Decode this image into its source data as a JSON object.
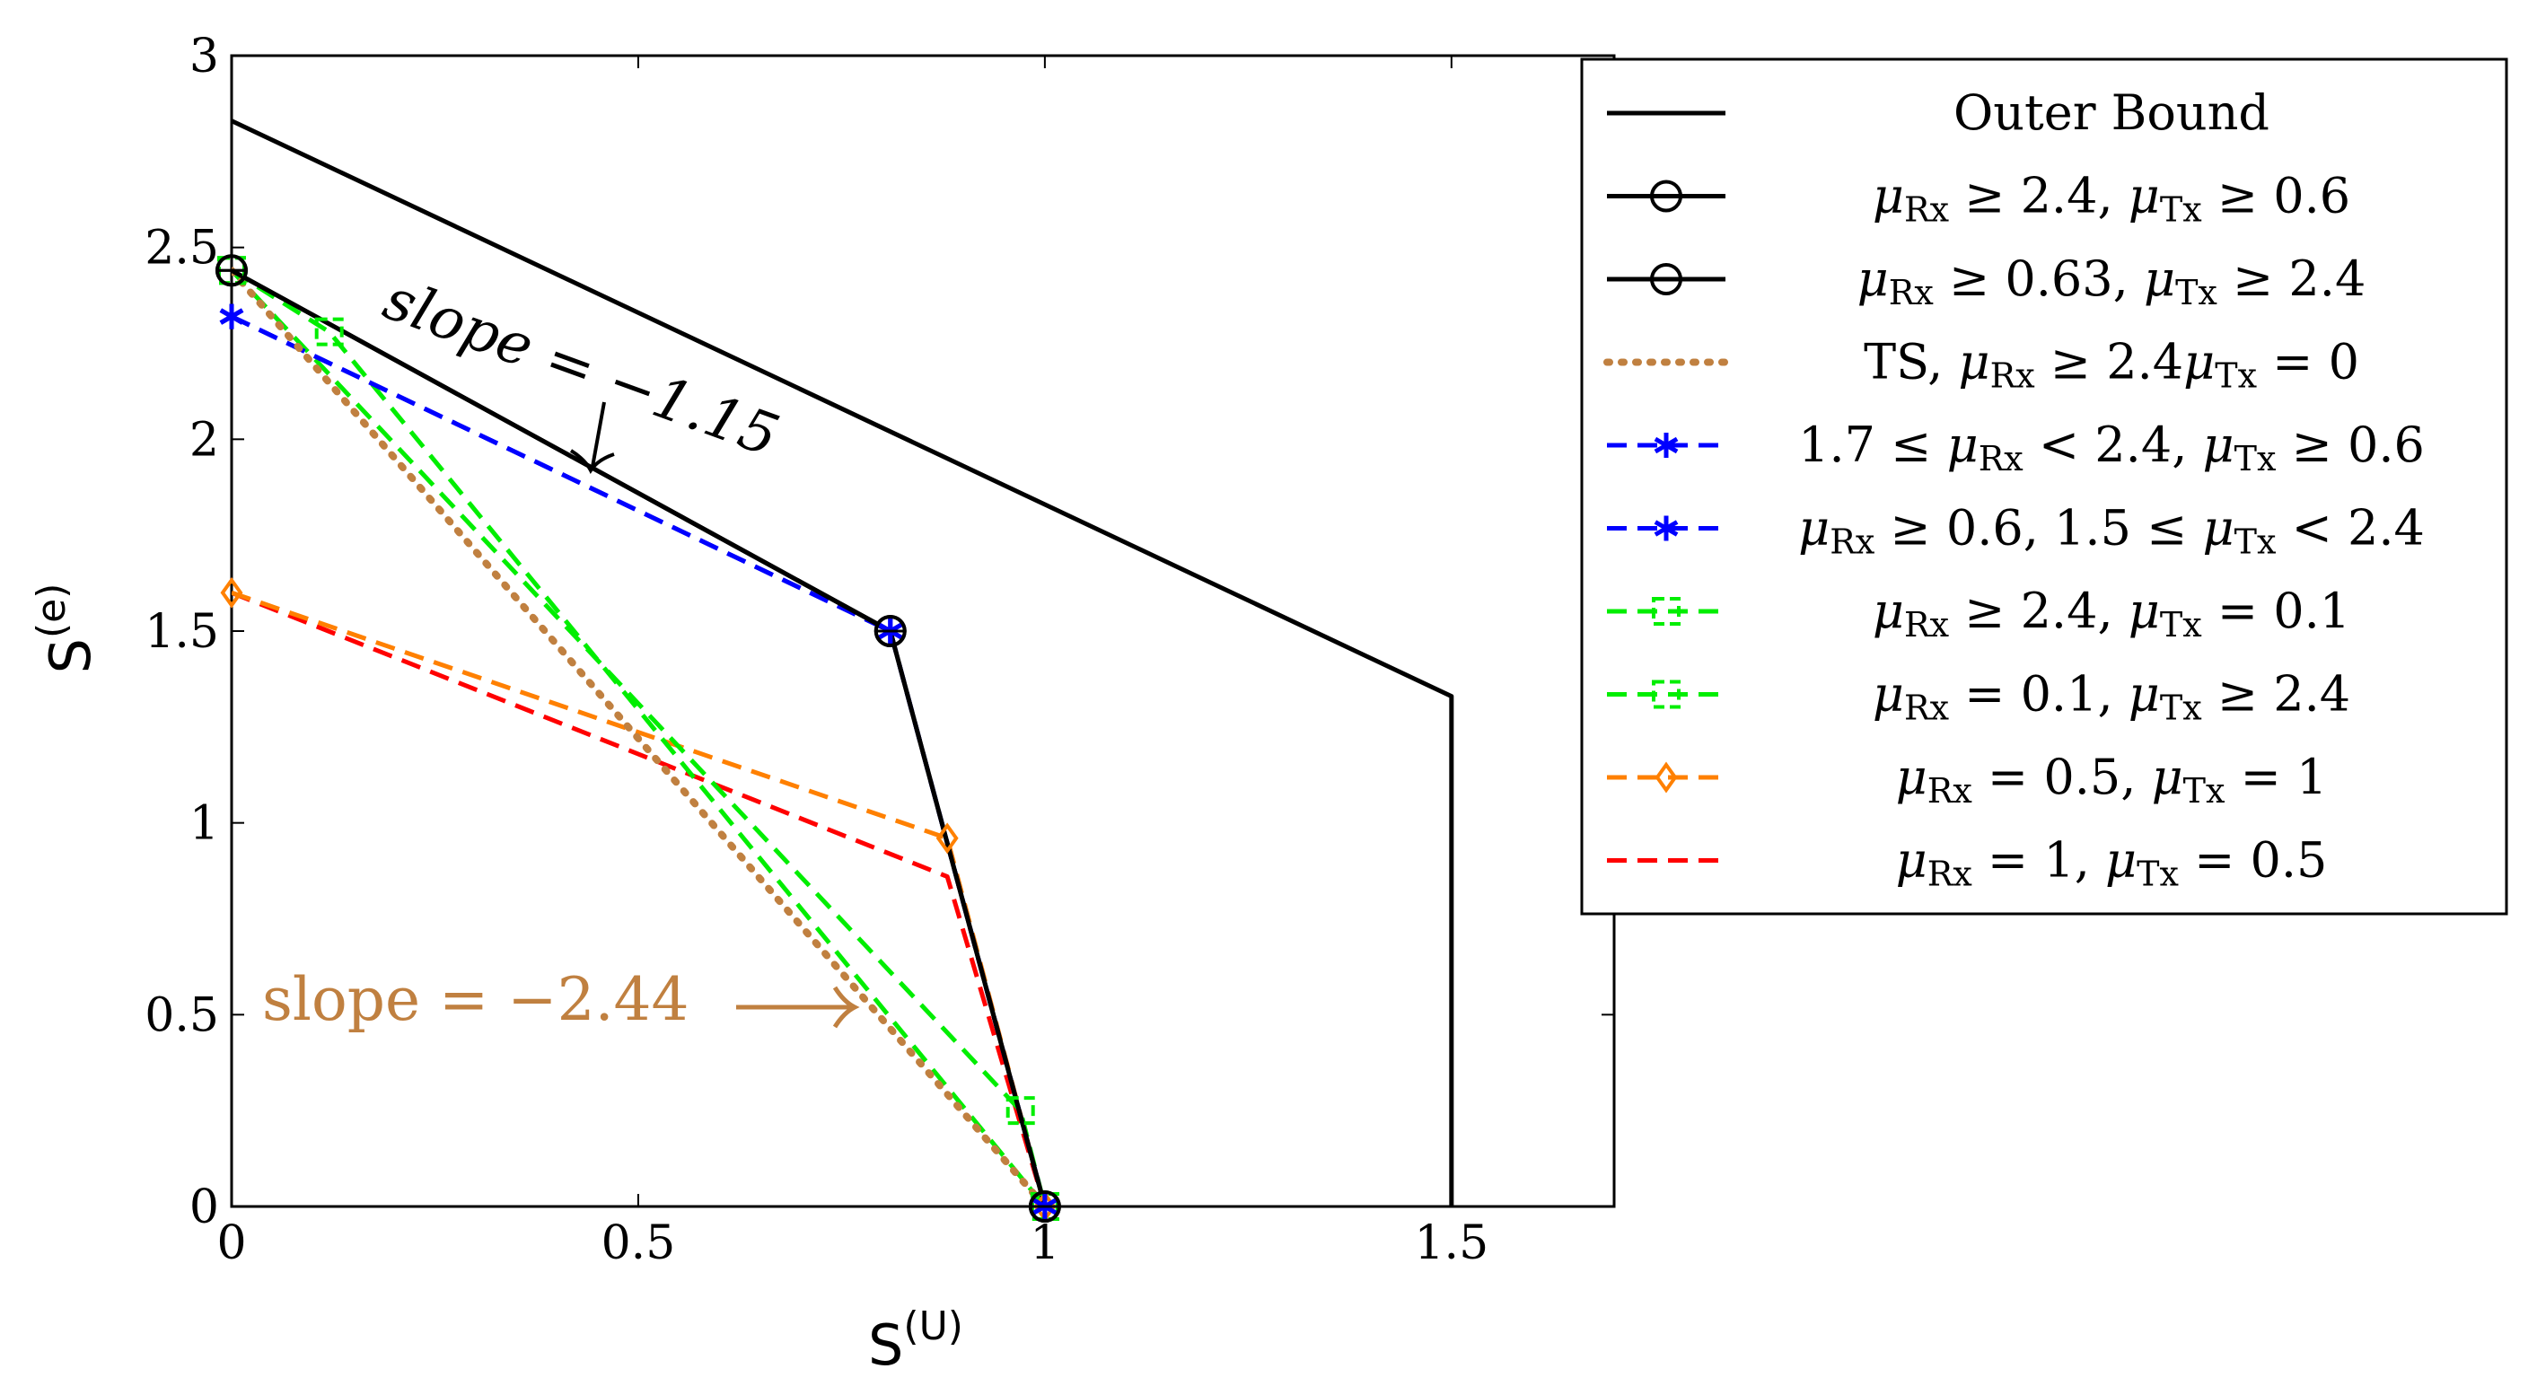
{
  "chart_data": {
    "type": "line",
    "xlabel": "S",
    "xlabel_sup": "(U)",
    "ylabel": "S",
    "ylabel_sup": "(e)",
    "xlim": [
      0,
      1.7
    ],
    "ylim": [
      0,
      3
    ],
    "xticks": [
      0,
      0.5,
      1,
      1.5
    ],
    "xtick_labels": [
      "0",
      "0.5",
      "1",
      "1.5"
    ],
    "yticks": [
      0,
      0.5,
      1,
      1.5,
      2,
      2.5,
      3
    ],
    "ytick_labels": [
      "0",
      "0.5",
      "1",
      "1.5",
      "2",
      "2.5",
      "3"
    ],
    "grid": false,
    "legend_position": "top-right",
    "series": [
      {
        "name": "Outer Bound",
        "label_html": "Outer Bound",
        "color": "#000000",
        "style": "solid",
        "marker": "none",
        "x": [
          0,
          1.5,
          1.5
        ],
        "y": [
          2.83,
          1.33,
          0
        ]
      },
      {
        "name": "μRx ≥ 2.4, μTx ≥ 0.6",
        "label_html": "<tspan font-style=\"italic\">μ</tspan><tspan font-size=\"38\" dy=\"10\">Rx</tspan><tspan dy=\"-10\"> ≥ 2.4, </tspan><tspan font-style=\"italic\">μ</tspan><tspan font-size=\"38\" dy=\"10\">Tx</tspan><tspan dy=\"-10\"> ≥ 0.6</tspan>",
        "color": "#000000",
        "style": "solid",
        "marker": "circle",
        "x": [
          0,
          0.81,
          1
        ],
        "y": [
          2.44,
          1.5,
          0
        ]
      },
      {
        "name": "μRx ≥ 0.63, μTx ≥ 2.4",
        "label_html": "<tspan font-style=\"italic\">μ</tspan><tspan font-size=\"38\" dy=\"10\">Rx</tspan><tspan dy=\"-10\"> ≥ 0.63, </tspan><tspan font-style=\"italic\">μ</tspan><tspan font-size=\"38\" dy=\"10\">Tx</tspan><tspan dy=\"-10\"> ≥ 2.4</tspan>",
        "color": "#000000",
        "style": "solid",
        "marker": "circle",
        "x": [
          0,
          0.81,
          1
        ],
        "y": [
          2.44,
          1.5,
          0
        ]
      },
      {
        "name": "TS, μRx ≥ 2.4μTx = 0",
        "label_html": "TS, <tspan font-style=\"italic\">μ</tspan><tspan font-size=\"38\" dy=\"10\">Rx</tspan><tspan dy=\"-10\"> ≥ 2.4</tspan><tspan font-style=\"italic\">μ</tspan><tspan font-size=\"38\" dy=\"10\">Tx</tspan><tspan dy=\"-10\"> = 0</tspan>",
        "color": "#c08040",
        "style": "dotted",
        "marker": "none",
        "x": [
          0,
          1
        ],
        "y": [
          2.44,
          0
        ]
      },
      {
        "name": "1.7 ≤ μRx < 2.4, μTx ≥ 0.6",
        "label_html": "1.7 ≤ <tspan font-style=\"italic\">μ</tspan><tspan font-size=\"38\" dy=\"10\">Rx</tspan><tspan dy=\"-10\"> &lt; 2.4, </tspan><tspan font-style=\"italic\">μ</tspan><tspan font-size=\"38\" dy=\"10\">Tx</tspan><tspan dy=\"-10\"> ≥ 0.6</tspan>",
        "color": "#0000ff",
        "style": "dashed",
        "marker": "star",
        "x": [
          0,
          0.81,
          1
        ],
        "y": [
          2.32,
          1.5,
          0
        ]
      },
      {
        "name": "μRx ≥ 0.6, 1.5 ≤ μTx < 2.4",
        "label_html": "<tspan font-style=\"italic\">μ</tspan><tspan font-size=\"38\" dy=\"10\">Rx</tspan><tspan dy=\"-10\"> ≥ 0.6, 1.5 ≤ </tspan><tspan font-style=\"italic\">μ</tspan><tspan font-size=\"38\" dy=\"10\">Tx</tspan><tspan dy=\"-10\"> &lt; 2.4</tspan>",
        "color": "#0000ff",
        "style": "dashed",
        "marker": "star",
        "x": [
          0,
          0.81,
          1
        ],
        "y": [
          2.32,
          1.5,
          0
        ]
      },
      {
        "name": "μRx ≥ 2.4, μTx = 0.1",
        "label_html": "<tspan font-style=\"italic\">μ</tspan><tspan font-size=\"38\" dy=\"10\">Rx</tspan><tspan dy=\"-10\"> ≥ 2.4, </tspan><tspan font-style=\"italic\">μ</tspan><tspan font-size=\"38\" dy=\"10\">Tx</tspan><tspan dy=\"-10\"> = 0.1</tspan>",
        "color": "#00ee00",
        "style": "dashed",
        "marker": "square",
        "x": [
          0,
          0.97,
          1
        ],
        "y": [
          2.44,
          0.25,
          0
        ]
      },
      {
        "name": "μRx = 0.1, μTx ≥ 2.4",
        "label_html": "<tspan font-style=\"italic\">μ</tspan><tspan font-size=\"38\" dy=\"10\">Rx</tspan><tspan dy=\"-10\"> = 0.1, </tspan><tspan font-style=\"italic\">μ</tspan><tspan font-size=\"38\" dy=\"10\">Tx</tspan><tspan dy=\"-10\"> ≥ 2.4</tspan>",
        "color": "#00ee00",
        "style": "dashed",
        "marker": "square",
        "x": [
          0,
          0.12,
          1
        ],
        "y": [
          2.44,
          2.28,
          0
        ]
      },
      {
        "name": "μRx = 0.5, μTx = 1",
        "label_html": "<tspan font-style=\"italic\">μ</tspan><tspan font-size=\"38\" dy=\"10\">Rx</tspan><tspan dy=\"-10\"> = 0.5, </tspan><tspan font-style=\"italic\">μ</tspan><tspan font-size=\"38\" dy=\"10\">Tx</tspan><tspan dy=\"-10\"> = 1</tspan>",
        "color": "#ff8000",
        "style": "dashed",
        "marker": "diamond",
        "x": [
          0,
          0.88,
          1
        ],
        "y": [
          1.6,
          0.96,
          0
        ]
      },
      {
        "name": "μRx = 1, μTx = 0.5",
        "label_html": "<tspan font-style=\"italic\">μ</tspan><tspan font-size=\"38\" dy=\"10\">Rx</tspan><tspan dy=\"-10\"> = 1, </tspan><tspan font-style=\"italic\">μ</tspan><tspan font-size=\"38\" dy=\"10\">Tx</tspan><tspan dy=\"-10\"> = 0.5</tspan>",
        "color": "#ff0000",
        "style": "dashed",
        "marker": "none",
        "x": [
          0,
          0.88,
          1
        ],
        "y": [
          1.6,
          0.86,
          0
        ]
      }
    ],
    "annotations": [
      {
        "text": "slope = −1.15",
        "color": "#000000",
        "arrow": "down"
      },
      {
        "text": "slope = −2.44",
        "color": "#c08040",
        "arrow": "right"
      }
    ]
  }
}
